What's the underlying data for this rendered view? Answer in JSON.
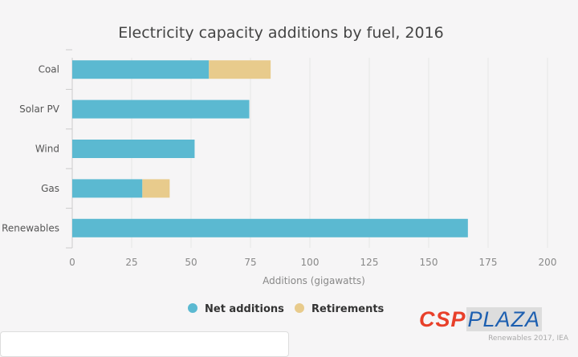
{
  "chart_data": {
    "type": "bar",
    "orientation": "horizontal",
    "stacked": true,
    "title": "Electricity capacity additions by fuel, 2016",
    "xlabel": "Additions (gigawatts)",
    "ylabel": "",
    "categories": [
      "Coal",
      "Solar PV",
      "Wind",
      "Gas",
      "Renewables"
    ],
    "series": [
      {
        "name": "Net additions",
        "color": "#5bb9d1",
        "values": [
          57.5,
          74.5,
          51.5,
          29.5,
          166.5
        ]
      },
      {
        "name": "Retirements",
        "color": "#e8cb8c",
        "values": [
          26,
          0,
          0,
          11.5,
          0
        ]
      }
    ],
    "xlim": [
      0,
      200
    ],
    "xticks": [
      "0",
      "25",
      "50",
      "75",
      "100",
      "125",
      "150",
      "175",
      "200"
    ],
    "grid": true,
    "legend": "bottom-center"
  },
  "watermark": {
    "brand_a": "CSP",
    "brand_b": "PLAZA"
  },
  "source": "Renewables 2017, IEA"
}
